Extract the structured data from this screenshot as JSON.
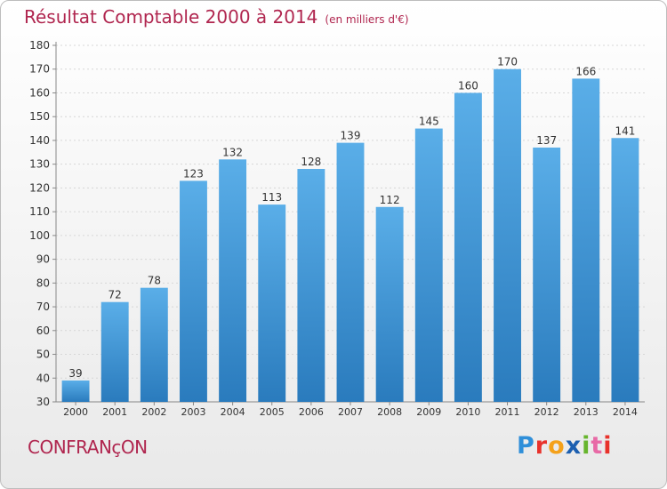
{
  "header": {
    "title": "Résultat Comptable 2000 à 2014",
    "subtitle": "(en milliers d'€)"
  },
  "footer": {
    "commune": "CONFRANçON",
    "logo": [
      "P",
      "r",
      "o",
      "x",
      "i",
      "t",
      "i"
    ]
  },
  "colors": {
    "bar_top": "#5aaee8",
    "bar_bottom": "#2a7bbd",
    "grid": "#d6d6d6",
    "title": "#b0264f"
  },
  "chart_data": {
    "type": "bar",
    "title": "Résultat Comptable 2000 à 2014",
    "subtitle": "(en milliers d'€)",
    "xlabel": "",
    "ylabel": "",
    "categories": [
      "2000",
      "2001",
      "2002",
      "2003",
      "2004",
      "2005",
      "2006",
      "2007",
      "2008",
      "2009",
      "2010",
      "2011",
      "2012",
      "2013",
      "2014"
    ],
    "values": [
      39,
      72,
      78,
      123,
      132,
      113,
      128,
      139,
      112,
      145,
      160,
      170,
      137,
      166,
      141
    ],
    "ylim": [
      30,
      180
    ],
    "yticks": [
      30,
      40,
      50,
      60,
      70,
      80,
      90,
      100,
      110,
      120,
      130,
      140,
      150,
      160,
      170,
      180
    ],
    "grid": true,
    "legend": "none"
  }
}
